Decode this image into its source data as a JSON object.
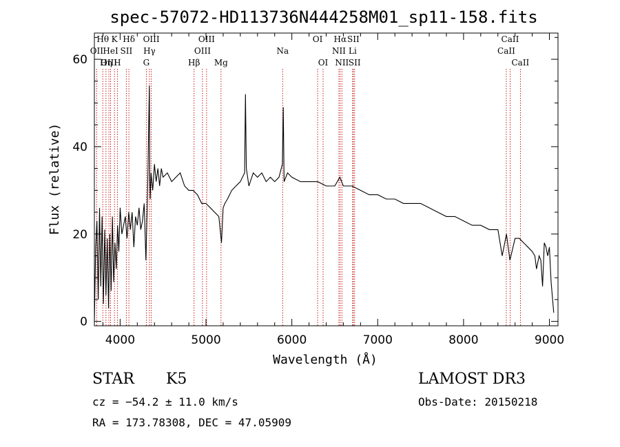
{
  "chart_data": {
    "type": "line",
    "title": "spec-57072-HD113736N444258M01_sp11-158.fits",
    "xlabel": "Wavelength (Å)",
    "ylabel": "Flux (relative)",
    "xlim": [
      3700,
      9100
    ],
    "ylim": [
      -1,
      66
    ],
    "x_ticks": [
      4000,
      5000,
      6000,
      7000,
      8000,
      9000
    ],
    "x_tick_labels": [
      "4000",
      "5000",
      "6000",
      "7000",
      "8000",
      "9000"
    ],
    "y_ticks": [
      0,
      20,
      40,
      60
    ],
    "y_tick_labels": [
      "0",
      "20",
      "40",
      "60"
    ],
    "grid": false,
    "series": [
      {
        "name": "flux",
        "x": [
          3700,
          3715,
          3730,
          3745,
          3760,
          3775,
          3790,
          3805,
          3820,
          3835,
          3850,
          3865,
          3880,
          3895,
          3910,
          3925,
          3940,
          3955,
          3970,
          3985,
          4000,
          4020,
          4040,
          4060,
          4080,
          4100,
          4120,
          4140,
          4160,
          4180,
          4200,
          4220,
          4240,
          4260,
          4280,
          4300,
          4320,
          4340,
          4345,
          4350,
          4360,
          4380,
          4400,
          4420,
          4440,
          4460,
          4480,
          4500,
          4550,
          4600,
          4650,
          4700,
          4750,
          4800,
          4850,
          4900,
          4950,
          5000,
          5050,
          5100,
          5150,
          5180,
          5200,
          5220,
          5250,
          5300,
          5350,
          5400,
          5450,
          5460,
          5470,
          5500,
          5550,
          5600,
          5650,
          5700,
          5750,
          5800,
          5850,
          5890,
          5900,
          5910,
          5950,
          6000,
          6100,
          6200,
          6300,
          6400,
          6500,
          6560,
          6600,
          6700,
          6800,
          6900,
          7000,
          7100,
          7200,
          7300,
          7400,
          7500,
          7600,
          7700,
          7800,
          7900,
          8000,
          8100,
          8200,
          8300,
          8400,
          8450,
          8500,
          8540,
          8600,
          8650,
          8700,
          8750,
          8800,
          8830,
          8850,
          8880,
          8900,
          8920,
          8940,
          8960,
          8980,
          9000,
          9020,
          9050
        ],
        "values": [
          0,
          17,
          23,
          5,
          26,
          8,
          24,
          4,
          21,
          6,
          19,
          3,
          20,
          7,
          24,
          9,
          18,
          12,
          22,
          16,
          26,
          20,
          22,
          24,
          19,
          25,
          21,
          25,
          17,
          24,
          22,
          26,
          21,
          23,
          27,
          14,
          30,
          54,
          33,
          28,
          34,
          30,
          36,
          32,
          35,
          31,
          35,
          33,
          34,
          32,
          33,
          34,
          31,
          30,
          30,
          29,
          27,
          27,
          26,
          25,
          24,
          18,
          26,
          27,
          28,
          30,
          31,
          32,
          34,
          52,
          35,
          31,
          34,
          33,
          34,
          32,
          33,
          32,
          33,
          36,
          49,
          32,
          34,
          33,
          32,
          32,
          32,
          31,
          31,
          33,
          31,
          31,
          30,
          29,
          29,
          28,
          28,
          27,
          27,
          27,
          26,
          25,
          24,
          24,
          23,
          22,
          22,
          21,
          21,
          15,
          20,
          14,
          19,
          19,
          18,
          17,
          16,
          15,
          12,
          15,
          14,
          8,
          18,
          17,
          15,
          17,
          9,
          2
        ]
      }
    ],
    "line_markers": [
      {
        "name": "OII",
        "wavelength": 3727,
        "row": 1
      },
      {
        "name": "Hθ",
        "wavelength": 3798,
        "row": 0
      },
      {
        "name": "OIII",
        "wavelength": 3869,
        "row": 2
      },
      {
        "name": "HeI",
        "wavelength": 3889,
        "row": 1
      },
      {
        "name": "Hη",
        "wavelength": 3835,
        "row": 2
      },
      {
        "name": "K",
        "wavelength": 3934,
        "row": 0
      },
      {
        "name": "H",
        "wavelength": 3968,
        "row": 2
      },
      {
        "name": "SII",
        "wavelength": 4072,
        "row": 1
      },
      {
        "name": "Hδ",
        "wavelength": 4102,
        "row": 0
      },
      {
        "name": "G",
        "wavelength": 4305,
        "row": 2
      },
      {
        "name": "OIII",
        "wavelength": 4363,
        "row": 0
      },
      {
        "name": "Hγ",
        "wavelength": 4341,
        "row": 1
      },
      {
        "name": "Hβ",
        "wavelength": 4861,
        "row": 2
      },
      {
        "name": "OIII",
        "wavelength": 4959,
        "row": 1
      },
      {
        "name": "OIII",
        "wavelength": 5007,
        "row": 0
      },
      {
        "name": "Mg",
        "wavelength": 5175,
        "row": 2
      },
      {
        "name": "Na",
        "wavelength": 5893,
        "row": 1
      },
      {
        "name": "OI",
        "wavelength": 6300,
        "row": 0
      },
      {
        "name": "OI",
        "wavelength": 6364,
        "row": 2
      },
      {
        "name": "NII",
        "wavelength": 6548,
        "row": 1
      },
      {
        "name": "Hα",
        "wavelength": 6563,
        "row": 0
      },
      {
        "name": "NII",
        "wavelength": 6583,
        "row": 2
      },
      {
        "name": "SII",
        "wavelength": 6716,
        "row": 0
      },
      {
        "name": "Li",
        "wavelength": 6708,
        "row": 1
      },
      {
        "name": "SII",
        "wavelength": 6731,
        "row": 2
      },
      {
        "name": "CaII",
        "wavelength": 8498,
        "row": 1
      },
      {
        "name": "CaII",
        "wavelength": 8542,
        "row": 0
      },
      {
        "name": "CaII",
        "wavelength": 8662,
        "row": 2
      }
    ]
  },
  "info": {
    "object_class": "STAR",
    "subclass": "K5",
    "survey": "LAMOST DR3",
    "cz": "cz = −54.2 ± 11.0 km/s",
    "obs_date": "Obs-Date: 20150218",
    "coords": "RA = 173.78308, DEC =  47.05909"
  }
}
